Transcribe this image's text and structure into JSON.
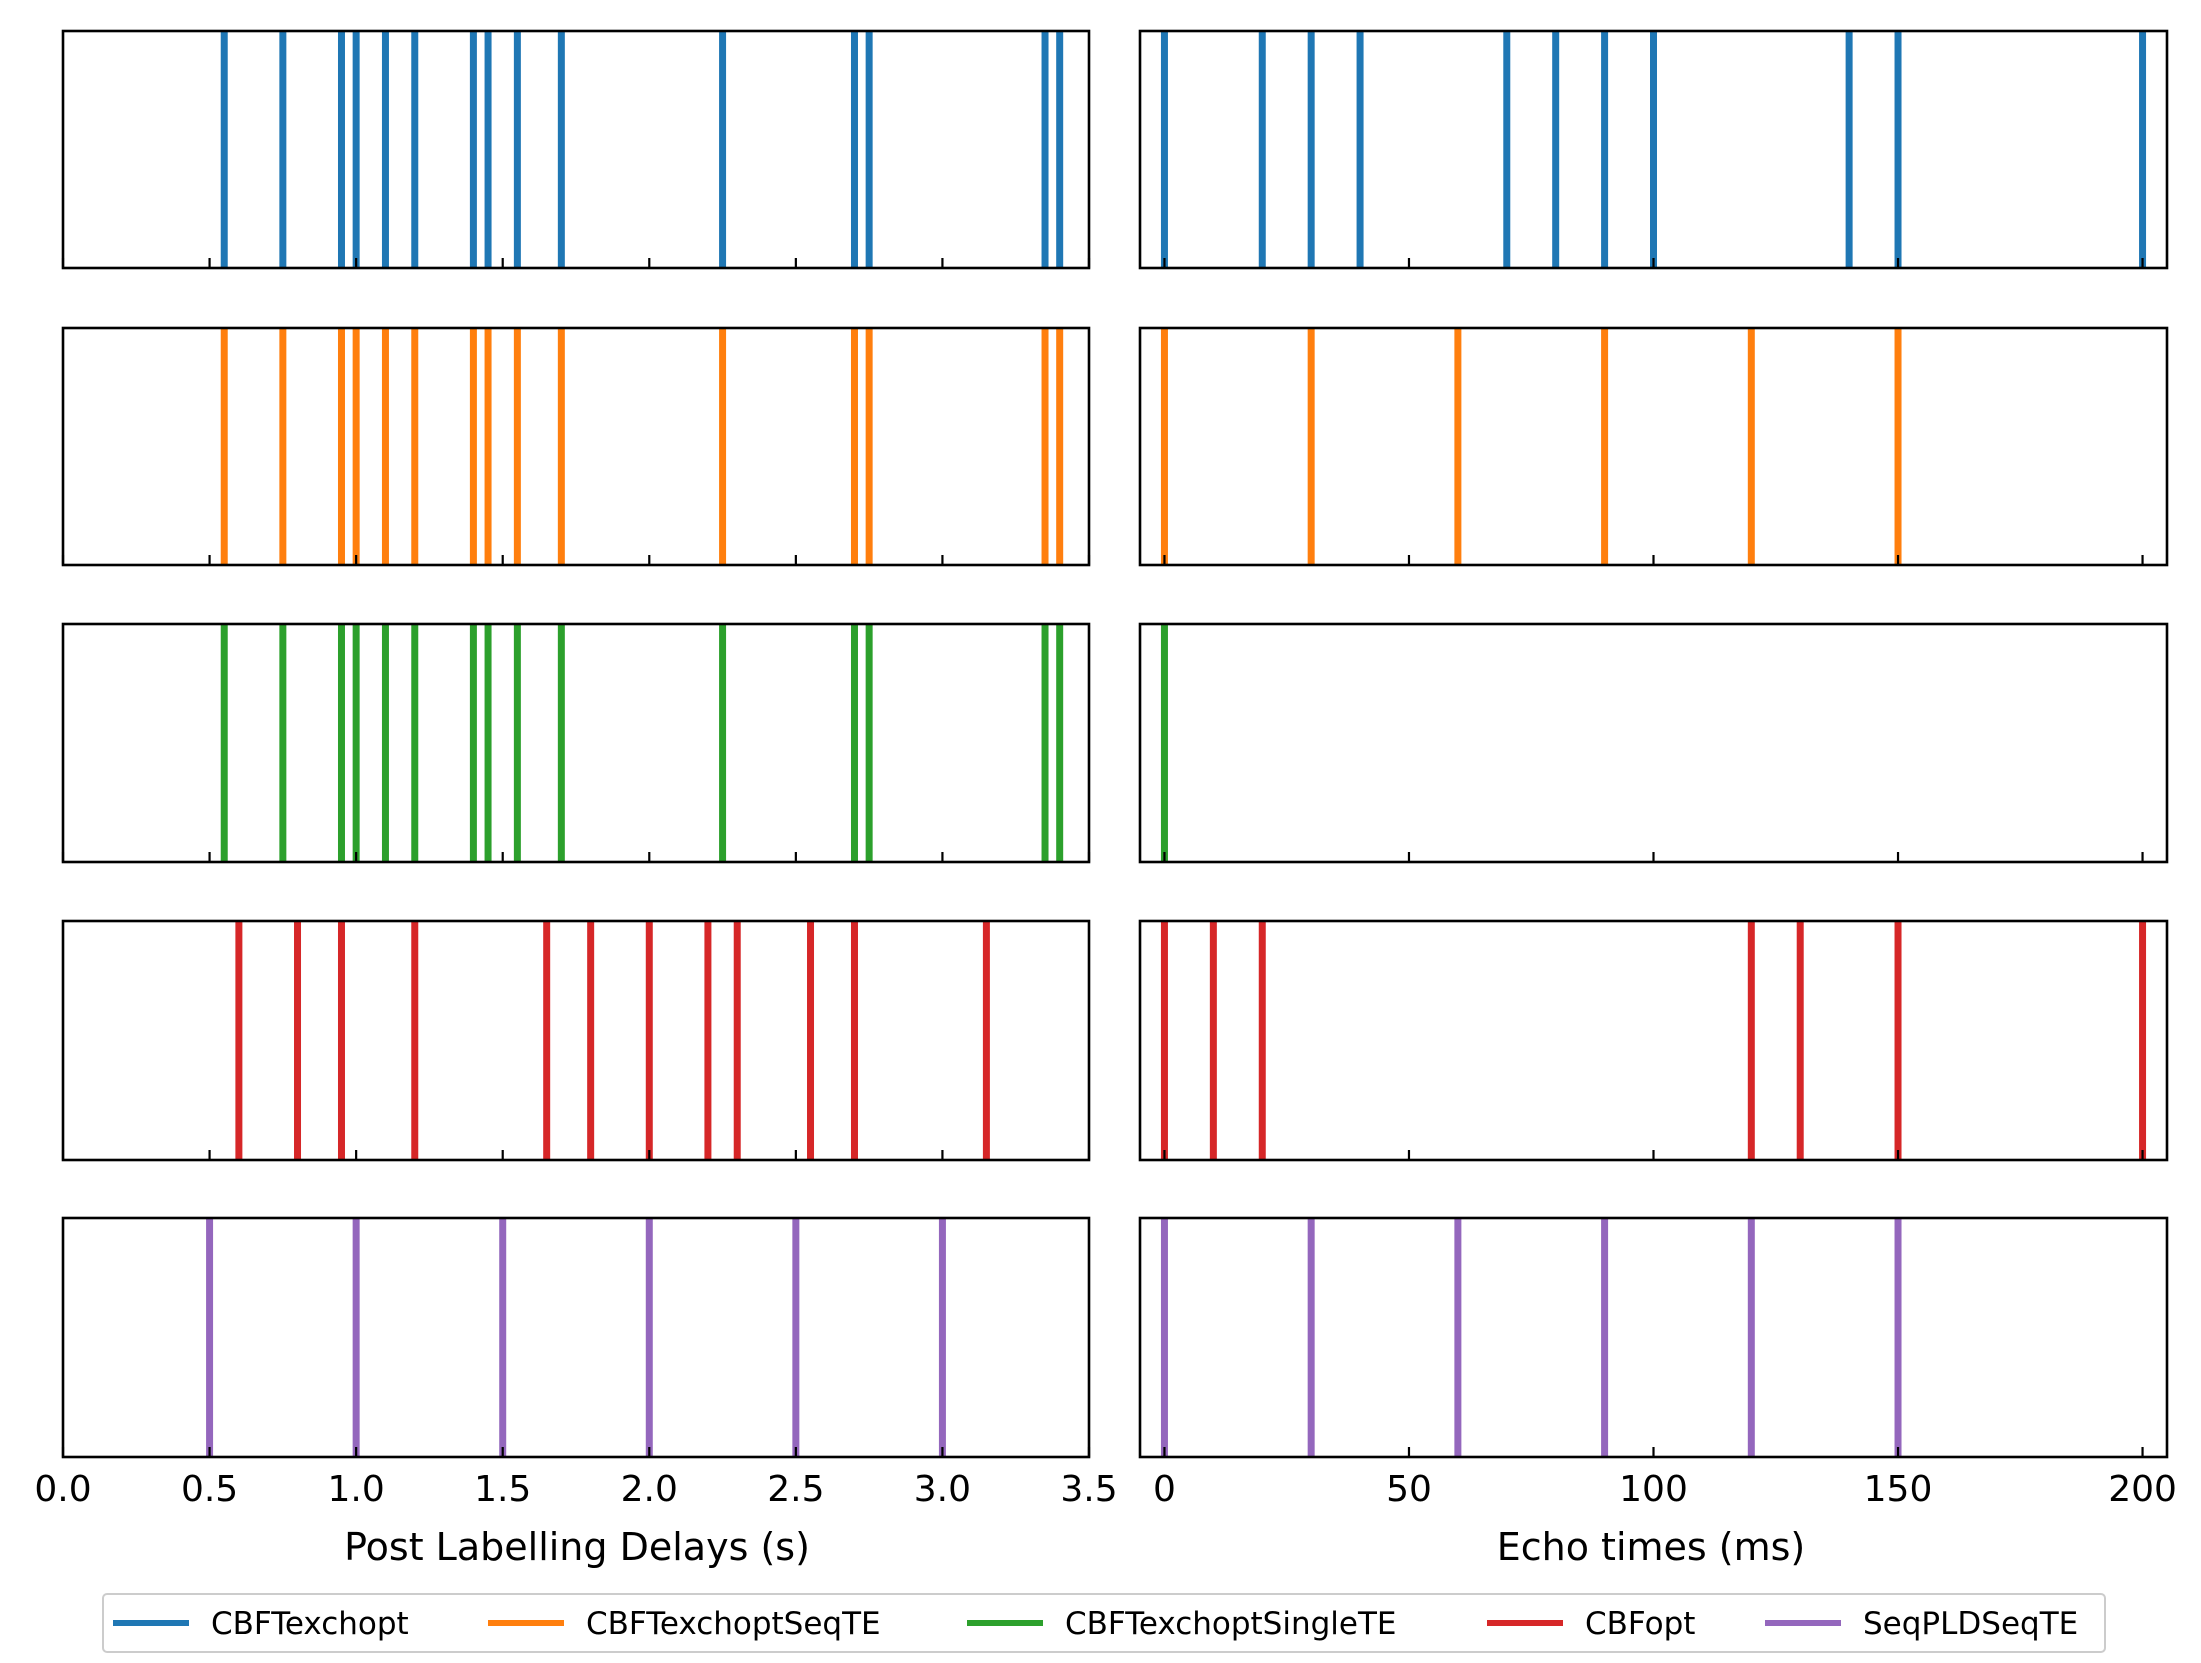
{
  "chart_data": {
    "type": "event-raster",
    "series": [
      {
        "name": "CBFTexchopt",
        "color": "#1f77b4",
        "pld": [
          0.55,
          0.75,
          0.95,
          1.0,
          1.1,
          1.2,
          1.4,
          1.45,
          1.55,
          1.7,
          2.25,
          2.7,
          2.75,
          3.35,
          3.4
        ],
        "te": [
          0,
          20,
          30,
          40,
          70,
          80,
          90,
          100,
          140,
          150,
          200
        ]
      },
      {
        "name": "CBFTexchoptSeqTE",
        "color": "#ff7f0e",
        "pld": [
          0.55,
          0.75,
          0.95,
          1.0,
          1.1,
          1.2,
          1.4,
          1.45,
          1.55,
          1.7,
          2.25,
          2.7,
          2.75,
          3.35,
          3.4
        ],
        "te": [
          0,
          30,
          60,
          90,
          120,
          150
        ]
      },
      {
        "name": "CBFTexchoptSingleTE",
        "color": "#2ca02c",
        "pld": [
          0.55,
          0.75,
          0.95,
          1.0,
          1.1,
          1.2,
          1.4,
          1.45,
          1.55,
          1.7,
          2.25,
          2.7,
          2.75,
          3.35,
          3.4
        ],
        "te": [
          0
        ]
      },
      {
        "name": "CBFopt",
        "color": "#d62728",
        "pld": [
          0.6,
          0.8,
          0.95,
          1.2,
          1.65,
          1.8,
          2.0,
          2.2,
          2.3,
          2.55,
          2.7,
          3.15
        ],
        "te": [
          0,
          10,
          20,
          120,
          130,
          150,
          200
        ]
      },
      {
        "name": "SeqPLDSeqTE",
        "color": "#9467bd",
        "pld": [
          0.5,
          1.0,
          1.5,
          2.0,
          2.5,
          3.0
        ],
        "te": [
          0,
          30,
          60,
          90,
          120,
          150
        ]
      }
    ],
    "left_axis": {
      "xlabel": "Post Labelling Delays (s)",
      "xlim": [
        0.0,
        3.5
      ],
      "ticks": [
        0.0,
        0.5,
        1.0,
        1.5,
        2.0,
        2.5,
        3.0,
        3.5
      ],
      "tick_labels": [
        "0.0",
        "0.5",
        "1.0",
        "1.5",
        "2.0",
        "2.5",
        "3.0",
        "3.5"
      ]
    },
    "right_axis": {
      "xlabel": "Echo times (ms)",
      "xlim": [
        -5,
        205
      ],
      "ticks": [
        0,
        50,
        100,
        150,
        200
      ],
      "tick_labels": [
        "0",
        "50",
        "100",
        "150",
        "200"
      ]
    },
    "legend_position": "bottom-center"
  }
}
